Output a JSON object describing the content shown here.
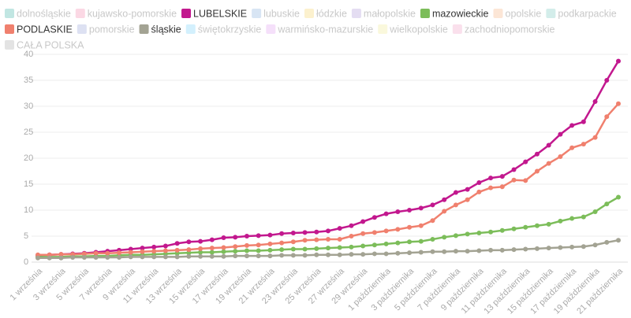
{
  "chart_data": {
    "type": "line",
    "categories": [
      "1 września",
      null,
      "3 września",
      null,
      "5 września",
      null,
      "7 września",
      null,
      "9 września",
      null,
      "11 września",
      null,
      "13 września",
      null,
      "15 września",
      null,
      "17 września",
      null,
      "19 września",
      null,
      "21 września",
      null,
      "23 września",
      null,
      "25 września",
      null,
      "27 września",
      null,
      "29 września",
      null,
      "1 października",
      null,
      "3 października",
      null,
      "5 października",
      null,
      "7 października",
      null,
      "9 października",
      null,
      "11 października",
      null,
      "13 października",
      null,
      "15 października",
      null,
      "17 października",
      null,
      "19 października",
      null,
      "21 października"
    ],
    "series": [
      {
        "name": "dolnośląskie",
        "color": "#4db6ac",
        "hidden": true
      },
      {
        "name": "kujawsko-pomorskie",
        "color": "#f48fb1",
        "hidden": true
      },
      {
        "name": "LUBELSKIE",
        "color": "#c2188e",
        "values": [
          1.3,
          1.4,
          1.5,
          1.6,
          1.7,
          1.9,
          2.1,
          2.3,
          2.5,
          2.7,
          2.9,
          3.1,
          3.6,
          3.9,
          4.0,
          4.3,
          4.7,
          4.8,
          5.0,
          5.1,
          5.2,
          5.5,
          5.6,
          5.7,
          5.8,
          6.0,
          6.5,
          7.0,
          7.8,
          8.6,
          9.3,
          9.7,
          10.0,
          10.4,
          11.0,
          12.0,
          13.4,
          14.0,
          15.3,
          16.2,
          16.5,
          17.8,
          19.3,
          20.8,
          22.5,
          24.6,
          26.3,
          27.0,
          30.9,
          35.0,
          38.7
        ]
      },
      {
        "name": "lubuskie",
        "color": "#90b4e0",
        "hidden": true
      },
      {
        "name": "łódzkie",
        "color": "#f7d774",
        "hidden": true
      },
      {
        "name": "małopolskie",
        "color": "#b39ddb",
        "hidden": true
      },
      {
        "name": "mazowieckie",
        "color": "#7cbd5a",
        "values": [
          1.0,
          1.0,
          1.0,
          1.1,
          1.1,
          1.2,
          1.2,
          1.3,
          1.4,
          1.4,
          1.5,
          1.6,
          1.7,
          1.8,
          1.9,
          1.9,
          2.0,
          2.1,
          2.2,
          2.2,
          2.3,
          2.4,
          2.5,
          2.5,
          2.6,
          2.7,
          2.8,
          2.9,
          3.1,
          3.3,
          3.5,
          3.7,
          3.9,
          4.0,
          4.4,
          4.8,
          5.1,
          5.4,
          5.6,
          5.8,
          6.1,
          6.4,
          6.7,
          7.0,
          7.3,
          7.9,
          8.4,
          8.7,
          9.7,
          11.2,
          12.5
        ]
      },
      {
        "name": "opolskie",
        "color": "#f5b88a",
        "hidden": true
      },
      {
        "name": "podkarpackie",
        "color": "#80cbc4",
        "hidden": true
      },
      {
        "name": "PODLASKIE",
        "color": "#f0806e",
        "values": [
          1.4,
          1.4,
          1.5,
          1.5,
          1.6,
          1.7,
          1.7,
          1.8,
          1.9,
          2.0,
          2.1,
          2.2,
          2.3,
          2.4,
          2.6,
          2.7,
          2.8,
          3.0,
          3.2,
          3.3,
          3.5,
          3.7,
          3.9,
          4.2,
          4.3,
          4.4,
          4.4,
          5.0,
          5.5,
          5.7,
          6.0,
          6.3,
          6.7,
          7.0,
          8.0,
          9.8,
          11.0,
          12.0,
          13.5,
          14.3,
          14.5,
          15.8,
          15.7,
          17.5,
          19.0,
          20.3,
          22.0,
          22.7,
          24.0,
          28.0,
          30.5
        ]
      },
      {
        "name": "pomorskie",
        "color": "#9fa8da",
        "hidden": true
      },
      {
        "name": "śląskie",
        "color": "#a3a393",
        "values": [
          0.8,
          0.8,
          0.8,
          0.9,
          0.9,
          0.9,
          0.9,
          0.9,
          1.0,
          1.0,
          1.0,
          1.0,
          1.0,
          1.1,
          1.1,
          1.1,
          1.1,
          1.2,
          1.2,
          1.2,
          1.2,
          1.3,
          1.3,
          1.3,
          1.4,
          1.4,
          1.4,
          1.5,
          1.5,
          1.6,
          1.6,
          1.7,
          1.8,
          1.9,
          2.0,
          2.0,
          2.1,
          2.1,
          2.2,
          2.3,
          2.3,
          2.4,
          2.5,
          2.6,
          2.7,
          2.8,
          2.9,
          3.0,
          3.3,
          3.8,
          4.2
        ]
      },
      {
        "name": "świętokrzyskie",
        "color": "#81d4fa",
        "hidden": true
      },
      {
        "name": "warmińsko-mazurskie",
        "color": "#e1a6f0",
        "hidden": true
      },
      {
        "name": "wielkopolskie",
        "color": "#f0eb9a",
        "hidden": true
      },
      {
        "name": "zachodniopomorskie",
        "color": "#f2a6c8",
        "hidden": true
      },
      {
        "name": "CAŁA POLSKA",
        "color": "#b0b0b0",
        "hidden": true
      }
    ],
    "ylim": [
      0,
      40
    ],
    "yticks": [
      0,
      5,
      10,
      15,
      20,
      25,
      30,
      35,
      40
    ],
    "grid": true
  }
}
